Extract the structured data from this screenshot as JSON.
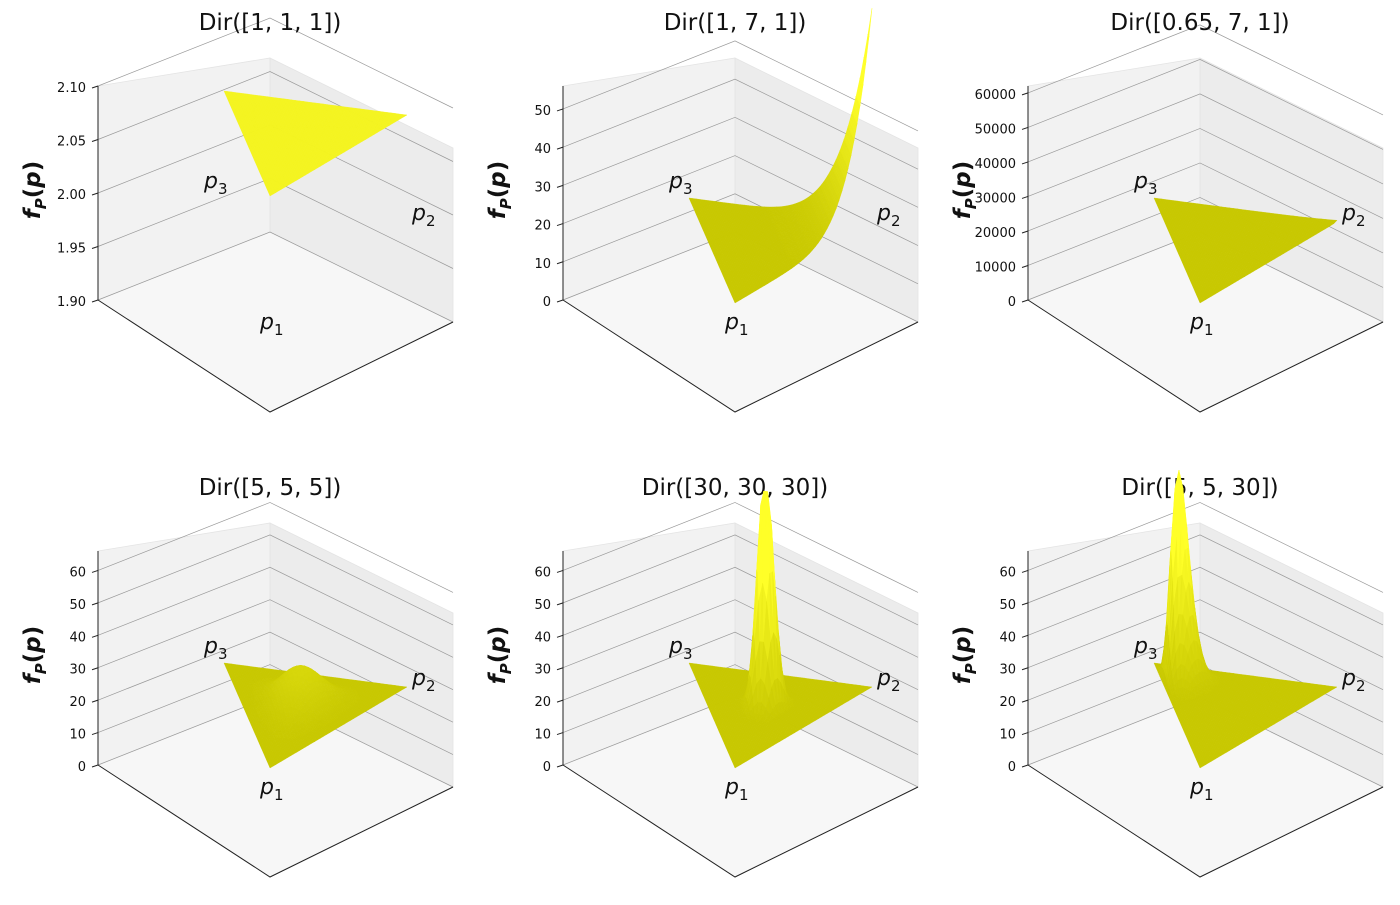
{
  "chart_data": [
    {
      "type": "surface3d",
      "title": "Dir([1, 1, 1])",
      "zlabel": "f_P(p)",
      "ztick_labels": [
        "1.90",
        "1.95",
        "2.00",
        "2.05",
        "2.10"
      ],
      "zlim": [
        1.9,
        2.1
      ],
      "alpha": [
        1,
        1,
        1
      ],
      "vertex_labels": [
        "p1",
        "p2",
        "p3"
      ],
      "surface_color": "#c8c800",
      "grid": true
    },
    {
      "type": "surface3d",
      "title": "Dir([1, 7, 1])",
      "zlabel": "f_P(p)",
      "ztick_labels": [
        "0",
        "10",
        "20",
        "30",
        "40",
        "50"
      ],
      "zlim": [
        0,
        56
      ],
      "alpha": [
        1,
        7,
        1
      ],
      "vertex_labels": [
        "p1",
        "p2",
        "p3"
      ],
      "surface_color": "#c8c800",
      "grid": true
    },
    {
      "type": "surface3d",
      "title": "Dir([0.65, 7, 1])",
      "zlabel": "f_P(p)",
      "ztick_labels": [
        "0",
        "10000",
        "20000",
        "30000",
        "40000",
        "50000",
        "60000"
      ],
      "zlim": [
        0,
        62000
      ],
      "alpha": [
        0.65,
        7,
        1
      ],
      "vertex_labels": [
        "p1",
        "p2",
        "p3"
      ],
      "surface_color": "#c8c800",
      "grid": true
    },
    {
      "type": "surface3d",
      "title": "Dir([5, 5, 5])",
      "zlabel": "f_P(p)",
      "ztick_labels": [
        "0",
        "10",
        "20",
        "30",
        "40",
        "50",
        "60"
      ],
      "zlim": [
        0,
        66
      ],
      "alpha": [
        5,
        5,
        5
      ],
      "vertex_labels": [
        "p1",
        "p2",
        "p3"
      ],
      "surface_color": "#c8c800",
      "grid": true
    },
    {
      "type": "surface3d",
      "title": "Dir([30, 30, 30])",
      "zlabel": "f_P(p)",
      "ztick_labels": [
        "0",
        "10",
        "20",
        "30",
        "40",
        "50",
        "60"
      ],
      "zlim": [
        0,
        66
      ],
      "alpha": [
        30,
        30,
        30
      ],
      "vertex_labels": [
        "p1",
        "p2",
        "p3"
      ],
      "surface_color": "#c8c800",
      "grid": true
    },
    {
      "type": "surface3d",
      "title": "Dir([5, 5, 30])",
      "zlabel": "f_P(p)",
      "ztick_labels": [
        "0",
        "10",
        "20",
        "30",
        "40",
        "50",
        "60"
      ],
      "zlim": [
        0,
        66
      ],
      "alpha": [
        5,
        5,
        30
      ],
      "vertex_labels": [
        "p1",
        "p2",
        "p3"
      ],
      "surface_color": "#c8c800",
      "grid": true
    }
  ]
}
